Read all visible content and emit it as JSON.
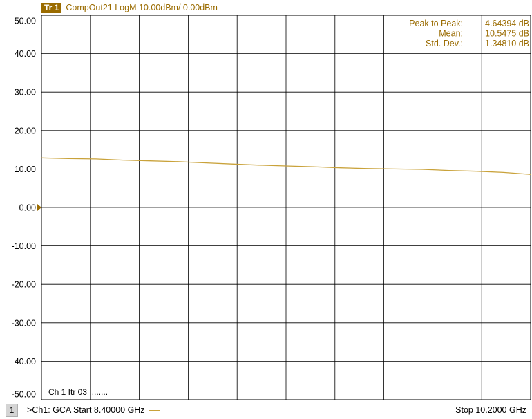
{
  "trace": {
    "badge": "Tr 1",
    "description": "CompOut21 LogM 10.00dBm/  0.00dBm",
    "color": "#c9a23a",
    "accent": "#9a6b00"
  },
  "stats": [
    {
      "label": "Peak to Peak:",
      "value": "4.64394 dB"
    },
    {
      "label": "Mean:",
      "value": "10.5475 dB"
    },
    {
      "label": "Std. Dev.:",
      "value": "1.34810 dB"
    }
  ],
  "channel_status": "Ch 1  Itr 03 ........",
  "bottom": {
    "channel_number": "1",
    "channel_label": ">Ch1: GCA  Start  8.40000 GHz",
    "stop_label": "Stop  10.2000 GHz"
  },
  "chart_data": {
    "type": "line",
    "x": [
      8.4,
      8.5,
      8.6,
      8.7,
      8.8,
      8.9,
      9.0,
      9.1,
      9.2,
      9.3,
      9.4,
      9.5,
      9.6,
      9.7,
      9.8,
      9.9,
      10.0,
      10.1,
      10.2
    ],
    "series": [
      {
        "values": [
          12.9,
          12.7,
          12.6,
          12.3,
          12.1,
          11.9,
          11.6,
          11.3,
          11.0,
          10.8,
          10.6,
          10.3,
          10.1,
          10.0,
          9.9,
          9.6,
          9.4,
          9.1,
          8.6
        ]
      }
    ],
    "xlim": [
      8.4,
      10.2
    ],
    "ylim": [
      -50,
      50
    ],
    "yticks": [
      "50.00",
      "40.00",
      "30.00",
      "20.00",
      "10.00",
      "0.00",
      "-10.00",
      "-20.00",
      "-30.00",
      "-40.00",
      "-50.00"
    ],
    "grid": true,
    "reference_value": 0
  }
}
